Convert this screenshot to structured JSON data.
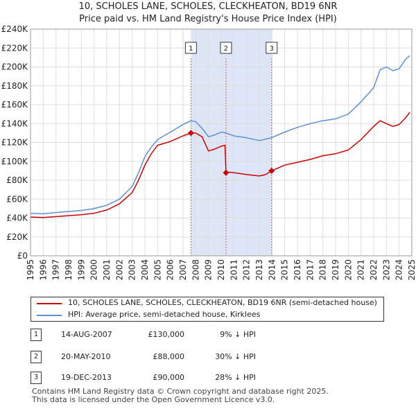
{
  "title_line1": "10, SCHOLES LANE, SCHOLES, CLECKHEATON, BD19 6NR",
  "title_line2": "Price paid vs. HM Land Registry's House Price Index (HPI)",
  "colors": {
    "property": "#cc0000",
    "hpi": "#5b8fd6",
    "shade": "#dde6f7",
    "grid": "#dddddd",
    "vline": "#e05555"
  },
  "chart_data": {
    "type": "line",
    "xlabel": "",
    "ylabel": "",
    "xlim": [
      1995,
      2025
    ],
    "ylim": [
      0,
      240000
    ],
    "x_ticks": [
      "1995",
      "1996",
      "1997",
      "1998",
      "1999",
      "2000",
      "2001",
      "2002",
      "2003",
      "2004",
      "2005",
      "2006",
      "2007",
      "2008",
      "2009",
      "2010",
      "2011",
      "2012",
      "2013",
      "2014",
      "2015",
      "2016",
      "2017",
      "2018",
      "2019",
      "2020",
      "2021",
      "2022",
      "2023",
      "2024",
      "2025"
    ],
    "y_ticks": [
      {
        "value": 0,
        "label": "£0"
      },
      {
        "value": 20000,
        "label": "£20K"
      },
      {
        "value": 40000,
        "label": "£40K"
      },
      {
        "value": 60000,
        "label": "£60K"
      },
      {
        "value": 80000,
        "label": "£80K"
      },
      {
        "value": 100000,
        "label": "£100K"
      },
      {
        "value": 120000,
        "label": "£120K"
      },
      {
        "value": 140000,
        "label": "£140K"
      },
      {
        "value": 160000,
        "label": "£160K"
      },
      {
        "value": 180000,
        "label": "£180K"
      },
      {
        "value": 200000,
        "label": "£200K"
      },
      {
        "value": 220000,
        "label": "£220K"
      },
      {
        "value": 240000,
        "label": "£240K"
      }
    ],
    "shaded_ranges": [
      [
        2007.62,
        2013.97
      ]
    ],
    "sale_markers": [
      {
        "label": "1",
        "x": 2007.62,
        "y": 130000
      },
      {
        "label": "2",
        "x": 2010.38,
        "y": 88000
      },
      {
        "label": "3",
        "x": 2013.97,
        "y": 90000
      }
    ],
    "series": [
      {
        "name": "10, SCHOLES LANE, SCHOLES, CLECKHEATON, BD19 6NR (semi-detached house)",
        "points": [
          [
            1995,
            41000
          ],
          [
            1996,
            40500
          ],
          [
            1997,
            41500
          ],
          [
            1998,
            42500
          ],
          [
            1999,
            43500
          ],
          [
            2000,
            45000
          ],
          [
            2001,
            48500
          ],
          [
            2002,
            55000
          ],
          [
            2003,
            67000
          ],
          [
            2003.5,
            80000
          ],
          [
            2004,
            96000
          ],
          [
            2004.5,
            108000
          ],
          [
            2005,
            117000
          ],
          [
            2006,
            121000
          ],
          [
            2007,
            127000
          ],
          [
            2007.62,
            130000
          ],
          [
            2008,
            130000
          ],
          [
            2008.5,
            126000
          ],
          [
            2009,
            111000
          ],
          [
            2009.5,
            113000
          ],
          [
            2010,
            116000
          ],
          [
            2010.3,
            117000
          ],
          [
            2010.38,
            88000
          ],
          [
            2010.6,
            88500
          ],
          [
            2011,
            88000
          ],
          [
            2012,
            86000
          ],
          [
            2013,
            84500
          ],
          [
            2013.5,
            86000
          ],
          [
            2013.97,
            90000
          ],
          [
            2015,
            96000
          ],
          [
            2016,
            99000
          ],
          [
            2017,
            102000
          ],
          [
            2018,
            106000
          ],
          [
            2019,
            108000
          ],
          [
            2020,
            112000
          ],
          [
            2021,
            123000
          ],
          [
            2022,
            137000
          ],
          [
            2022.5,
            143000
          ],
          [
            2023,
            140000
          ],
          [
            2023.5,
            137000
          ],
          [
            2024,
            139000
          ],
          [
            2024.5,
            146000
          ],
          [
            2024.85,
            152000
          ]
        ]
      },
      {
        "name": "HPI: Average price, semi-detached house, Kirklees",
        "points": [
          [
            1995,
            45000
          ],
          [
            1996,
            44500
          ],
          [
            1997,
            45800
          ],
          [
            1998,
            47000
          ],
          [
            1999,
            48000
          ],
          [
            2000,
            50000
          ],
          [
            2001,
            53500
          ],
          [
            2002,
            60000
          ],
          [
            2003,
            73500
          ],
          [
            2003.5,
            88000
          ],
          [
            2004,
            105000
          ],
          [
            2004.5,
            115000
          ],
          [
            2005,
            123000
          ],
          [
            2006,
            131000
          ],
          [
            2007,
            139000
          ],
          [
            2007.62,
            143000
          ],
          [
            2008,
            142000
          ],
          [
            2008.5,
            135000
          ],
          [
            2009,
            126000
          ],
          [
            2009.5,
            128000
          ],
          [
            2010,
            131000
          ],
          [
            2010.38,
            130000
          ],
          [
            2011,
            127000
          ],
          [
            2012,
            125000
          ],
          [
            2013,
            122000
          ],
          [
            2013.97,
            125000
          ],
          [
            2015,
            131000
          ],
          [
            2016,
            136000
          ],
          [
            2017,
            140000
          ],
          [
            2018,
            143000
          ],
          [
            2019,
            145000
          ],
          [
            2020,
            150000
          ],
          [
            2021,
            163000
          ],
          [
            2022,
            178000
          ],
          [
            2022.5,
            197000
          ],
          [
            2023,
            200000
          ],
          [
            2023.5,
            196000
          ],
          [
            2024,
            198000
          ],
          [
            2024.5,
            208000
          ],
          [
            2024.85,
            212000
          ]
        ]
      }
    ]
  },
  "legend": {
    "property_label": "10, SCHOLES LANE, SCHOLES, CLECKHEATON, BD19 6NR (semi-detached house)",
    "hpi_label": "HPI: Average price, semi-detached house, Kirklees"
  },
  "transactions": [
    {
      "num": "1",
      "date": "14-AUG-2007",
      "price": "£130,000",
      "hpi": "9% ↓ HPI"
    },
    {
      "num": "2",
      "date": "20-MAY-2010",
      "price": "£88,000",
      "hpi": "30% ↓ HPI"
    },
    {
      "num": "3",
      "date": "19-DEC-2013",
      "price": "£90,000",
      "hpi": "28% ↓ HPI"
    }
  ],
  "footer_line1": "Contains HM Land Registry data © Crown copyright and database right 2025.",
  "footer_line2": "This data is licensed under the Open Government Licence v3.0."
}
